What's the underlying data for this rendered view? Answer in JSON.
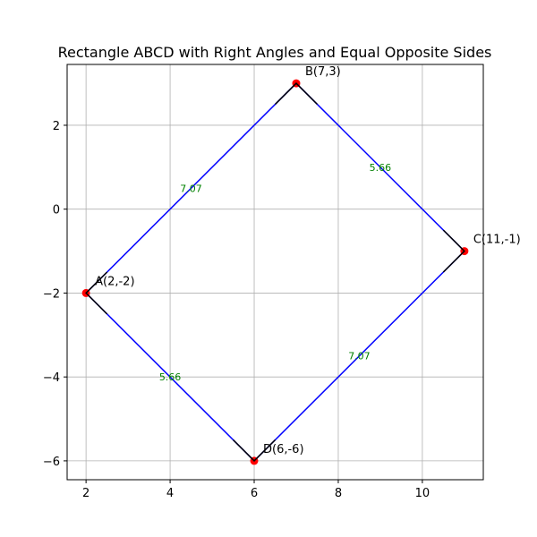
{
  "chart_data": {
    "type": "line",
    "title": "Rectangle ABCD with Right Angles and Equal Opposite Sides",
    "xlabel": "",
    "ylabel": "",
    "xlim": [
      1.55,
      11.45
    ],
    "ylim": [
      -6.45,
      3.45
    ],
    "xticks": [
      2,
      4,
      6,
      8,
      10
    ],
    "yticks": [
      2,
      0,
      -2,
      -4,
      -6
    ],
    "grid": true,
    "colors": {
      "edge": "#0000ff",
      "vertex": "#ff0000",
      "right_angle": "#000000",
      "side_label": "#008000"
    },
    "vertices": [
      {
        "id": "A",
        "label": "A(2,-2)",
        "x": 2,
        "y": -2
      },
      {
        "id": "B",
        "label": "B(7,3)",
        "x": 7,
        "y": 3
      },
      {
        "id": "C",
        "label": "C(11,-1)",
        "x": 11,
        "y": -1
      },
      {
        "id": "D",
        "label": "D(6,-6)",
        "x": 6,
        "y": -6
      }
    ],
    "edges": [
      [
        "A",
        "B"
      ],
      [
        "B",
        "C"
      ],
      [
        "C",
        "D"
      ],
      [
        "D",
        "A"
      ]
    ],
    "right_angle_markers": [
      {
        "vertex": "A",
        "points": [
          [
            2.5,
            -1.5
          ],
          [
            2.5,
            -2.5
          ]
        ]
      },
      {
        "vertex": "B",
        "points": [
          [
            6.5,
            2.5
          ],
          [
            7.5,
            2.5
          ]
        ]
      },
      {
        "vertex": "C",
        "points": [
          [
            10.5,
            -0.5
          ],
          [
            10.5,
            -1.5
          ]
        ]
      },
      {
        "vertex": "D",
        "points": [
          [
            5.5,
            -5.5
          ],
          [
            6.5,
            -5.5
          ]
        ]
      }
    ],
    "side_lengths": [
      {
        "label": "7.07",
        "x": 4.5,
        "y": 0.5
      },
      {
        "label": "5.66",
        "x": 9.0,
        "y": 1.0
      },
      {
        "label": "7.07",
        "x": 8.5,
        "y": -3.5
      },
      {
        "label": "5.66",
        "x": 4.0,
        "y": -4.0
      }
    ]
  }
}
